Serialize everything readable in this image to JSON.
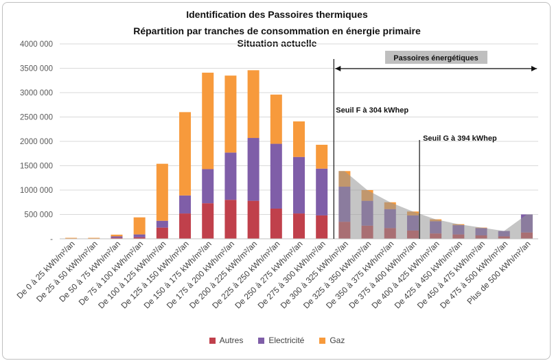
{
  "chart_data": {
    "type": "bar",
    "stacked": true,
    "title_lines": [
      "Identification des Passoires thermiques",
      "Répartition par tranches de consommation en énergie primaire",
      "Situation actuelle"
    ],
    "categories": [
      "De 0 à 25 kWh/m²/an",
      "De 25 à 50 kWh/m²/an",
      "De 50 à 75 kWh/m²/an",
      "De 75 à 100 kWh/m²/an",
      "De 100 à 125 kWh/m²/an",
      "De 125 à 150 kWh/m²/an",
      "De 150 à 175 kWh/m²/an",
      "De 175 à 200 kWh/m²/an",
      "De 200 à 225 kWh/m²/an",
      "De 225 à 250 kWh/m²/an",
      "De 250 à 275 kWh/m²/an",
      "De 275 à 300 kWh/m²/an",
      "De 300 à 325 kWh/m²/an",
      "De 325 à 350 kWh/m²/an",
      "De 350 à 375 kWh/m²/an",
      "De 375 à 400 kWh/m²/an",
      "De 400 à 425 kWh/m²/an",
      "De 425 à 450 kWh/m²/an",
      "De 450 à 475 kWh/m²/an",
      "De 475 à 500 kWh/m²/an",
      "Plus de 500 kWh/m²/an"
    ],
    "series": [
      {
        "name": "Autres",
        "color": "#c0404b",
        "values": [
          0,
          0,
          20,
          30,
          230,
          520,
          730,
          800,
          780,
          620,
          520,
          480,
          350,
          270,
          220,
          170,
          110,
          90,
          70,
          50,
          130
        ]
      },
      {
        "name": "Electricité",
        "color": "#7f5ea8",
        "values": [
          5,
          5,
          30,
          60,
          140,
          370,
          700,
          970,
          1290,
          1330,
          1160,
          960,
          720,
          510,
          390,
          310,
          250,
          190,
          150,
          110,
          370
        ]
      },
      {
        "name": "Gaz",
        "color": "#f79a3c",
        "values": [
          15,
          15,
          35,
          350,
          1170,
          1710,
          1980,
          1580,
          1390,
          1010,
          730,
          490,
          320,
          220,
          140,
          80,
          40,
          20,
          10,
          0,
          0
        ]
      }
    ],
    "ylim": [
      0,
      4000000
    ],
    "yticks": [
      "-",
      "500 000",
      "1000 000",
      "1500 000",
      "2000 000",
      "2500 000",
      "3000 000",
      "3500 000",
      "4000 000"
    ],
    "grid": true,
    "legend_position": "bottom",
    "annotations": {
      "zone_label": "Passoires énergétiques",
      "seuil_f": "Seuil F à 304 kWhep",
      "seuil_g": "Seuil G à 394 kWhep"
    }
  }
}
